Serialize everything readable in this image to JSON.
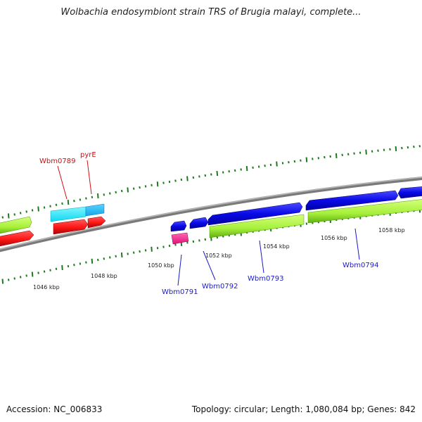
{
  "title": "Wolbachia endosymbiont strain TRS of Brugia malayi, complete...",
  "footer": {
    "accession": "Accession: NC_006833",
    "topology": "Topology: circular; Length: 1,080,084 bp; Genes: 842"
  },
  "colors": {
    "backbone": "#8a8a8a",
    "tick": "#1f7a1f",
    "label_red": "#d01010",
    "label_blue": "#1a1acc"
  },
  "scale": {
    "tick_labels": [
      "1046 kbp",
      "1048 kbp",
      "1050 kbp",
      "1052 kbp",
      "1054 kbp",
      "1056 kbp",
      "1058 kbp"
    ]
  },
  "genes": {
    "labels": [
      "Wbm0789",
      "pyrE",
      "Wbm0791",
      "Wbm0792",
      "Wbm0793",
      "Wbm0794"
    ]
  }
}
